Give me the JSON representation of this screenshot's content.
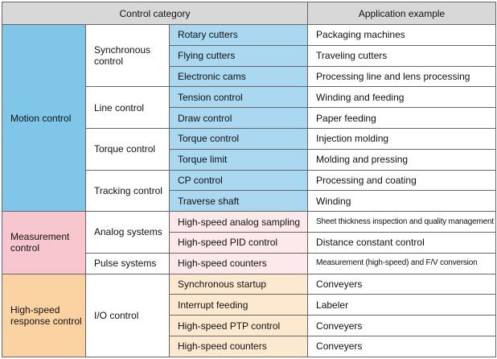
{
  "headers": {
    "category": "Control category",
    "application": "Application example"
  },
  "groups": {
    "motion": "Motion control",
    "measurement": "Measurement control",
    "highspeed": "High-speed response control"
  },
  "subgroups": {
    "synchronous": "Synchronous control",
    "line": "Line control",
    "torque": "Torque control",
    "tracking": "Tracking control",
    "analog": "Analog systems",
    "pulse": "Pulse systems",
    "io": "I/O control"
  },
  "rows": [
    {
      "control": "Rotary cutters",
      "example": "Packaging machines"
    },
    {
      "control": "Flying cutters",
      "example": "Traveling cutters"
    },
    {
      "control": "Electronic cams",
      "example": "Processing line and lens processing"
    },
    {
      "control": "Tension control",
      "example": "Winding and feeding"
    },
    {
      "control": "Draw control",
      "example": "Paper feeding"
    },
    {
      "control": "Torque control",
      "example": "Injection molding"
    },
    {
      "control": "Torque limit",
      "example": "Molding and pressing"
    },
    {
      "control": "CP control",
      "example": "Processing and coating"
    },
    {
      "control": "Traverse shaft",
      "example": "Winding"
    },
    {
      "control": "High-speed analog sampling",
      "example": "Sheet thickness inspection and quality management"
    },
    {
      "control": "High-speed PID control",
      "example": "Distance constant control"
    },
    {
      "control": "High-speed counters",
      "example": "Measurement (high-speed) and F/V conversion"
    },
    {
      "control": "Synchronous startup",
      "example": "Conveyers"
    },
    {
      "control": "Interrupt feeding",
      "example": "Labeler"
    },
    {
      "control": "High-speed PTP control",
      "example": "Conveyers"
    },
    {
      "control": "High-speed counters",
      "example": "Conveyers"
    }
  ]
}
